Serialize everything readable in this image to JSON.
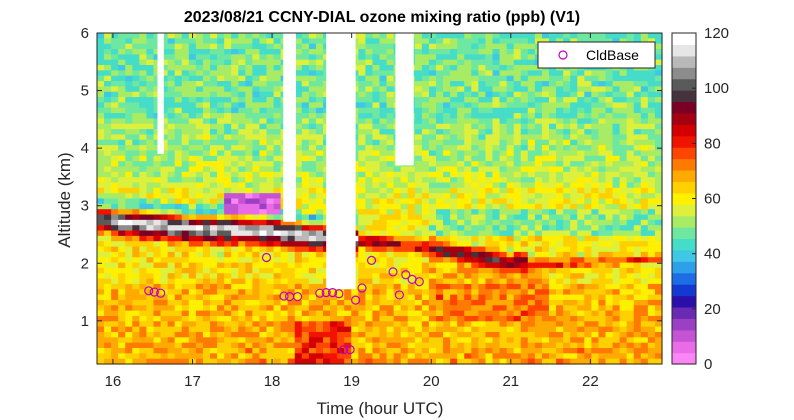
{
  "chart_data": {
    "type": "heatmap",
    "title": "2023/08/21 CCNY-DIAL ozone mixing ratio (ppb) (V1)",
    "xlabel": "Time (hour UTC)",
    "ylabel": "Altitude (km)",
    "xlim": [
      15.8,
      22.9
    ],
    "ylim": [
      0.25,
      6.0
    ],
    "xticks": [
      "16",
      "17",
      "18",
      "19",
      "20",
      "21",
      "22"
    ],
    "yticks": [
      "1",
      "2",
      "3",
      "4",
      "5",
      "6"
    ],
    "colorbar": {
      "range": [
        0,
        120
      ],
      "ticks": [
        "0",
        "20",
        "40",
        "60",
        "80",
        "100",
        "120"
      ],
      "colors": [
        "#f986f4",
        "#e96ce6",
        "#c454d4",
        "#9b3fc4",
        "#6a2ab4",
        "#2a10a8",
        "#1438d2",
        "#1d6ee6",
        "#2ea0ea",
        "#3ec8e6",
        "#45dcc8",
        "#6ee8a0",
        "#a8ec66",
        "#dcf03c",
        "#fff000",
        "#ffd000",
        "#ffaa00",
        "#ff7a00",
        "#ff4600",
        "#f01400",
        "#d20000",
        "#a50012",
        "#7a0024",
        "#46323c",
        "#5a5a5a",
        "#8c8c8c",
        "#b9b9b9",
        "#e6e6e6",
        "#ffffff"
      ]
    },
    "legend": {
      "entries": [
        "CldBase"
      ],
      "placement": "top-right"
    },
    "cloud_gaps": [
      {
        "x": [
          16.56,
          16.64
        ],
        "y_min": 3.9
      },
      {
        "x": [
          18.14,
          18.3
        ],
        "y_min": 2.72
      },
      {
        "x": [
          18.68,
          19.05
        ],
        "y_min": 1.55
      },
      {
        "x": [
          19.55,
          19.78
        ],
        "y_min": 3.7
      }
    ],
    "cloud_base_series": {
      "name": "CldBase",
      "points": [
        {
          "x": 16.45,
          "y": 1.52
        },
        {
          "x": 16.52,
          "y": 1.5
        },
        {
          "x": 16.6,
          "y": 1.48
        },
        {
          "x": 17.93,
          "y": 2.1
        },
        {
          "x": 18.15,
          "y": 1.43
        },
        {
          "x": 18.22,
          "y": 1.42
        },
        {
          "x": 18.32,
          "y": 1.42
        },
        {
          "x": 18.6,
          "y": 1.48
        },
        {
          "x": 18.68,
          "y": 1.49
        },
        {
          "x": 18.76,
          "y": 1.49
        },
        {
          "x": 18.84,
          "y": 1.47
        },
        {
          "x": 18.9,
          "y": 0.5
        },
        {
          "x": 18.98,
          "y": 0.5
        },
        {
          "x": 19.05,
          "y": 1.36
        },
        {
          "x": 19.13,
          "y": 1.57
        },
        {
          "x": 19.25,
          "y": 2.05
        },
        {
          "x": 19.52,
          "y": 1.85
        },
        {
          "x": 19.6,
          "y": 1.45
        },
        {
          "x": 19.68,
          "y": 1.8
        },
        {
          "x": 19.76,
          "y": 1.72
        },
        {
          "x": 19.85,
          "y": 1.68
        }
      ]
    }
  }
}
